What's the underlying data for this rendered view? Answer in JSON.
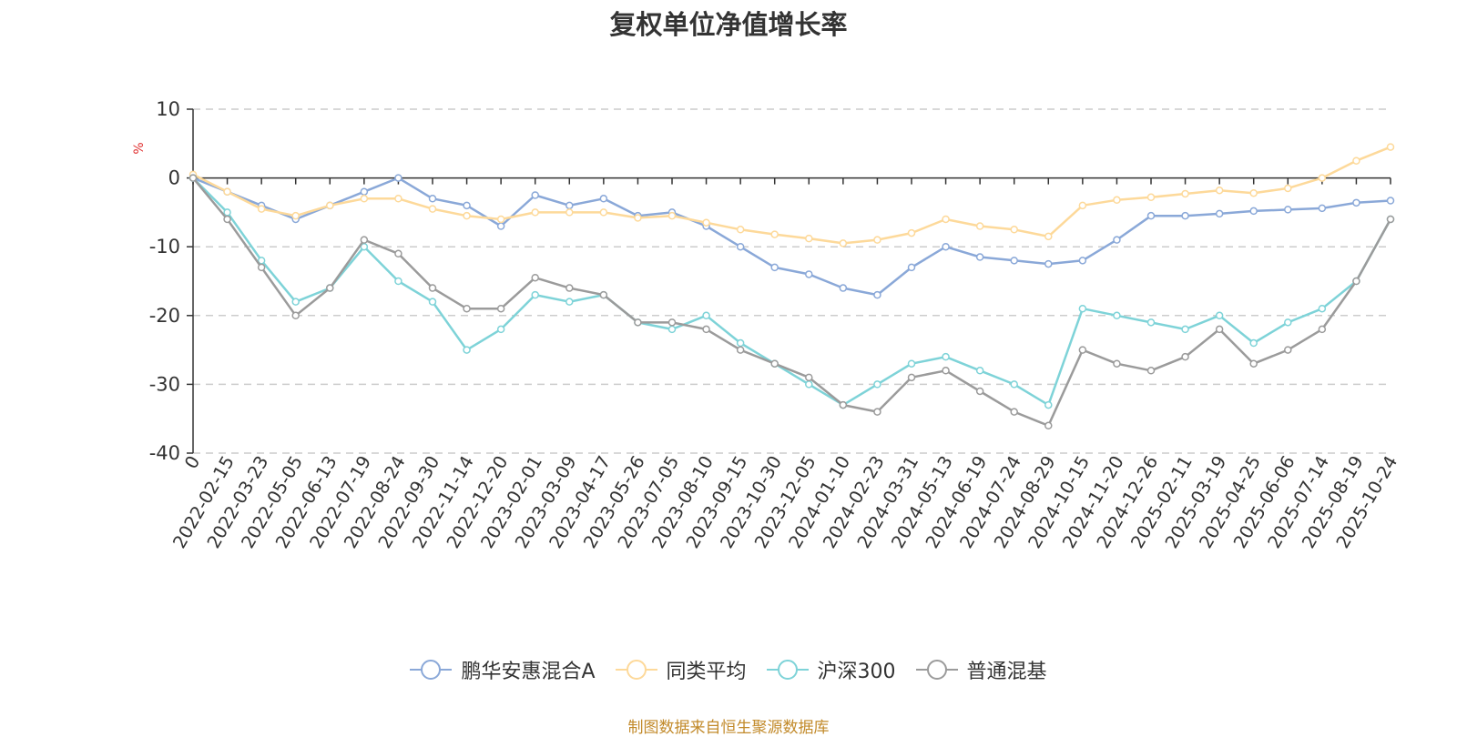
{
  "chart_data": {
    "type": "line",
    "title": "复权单位净值增长率",
    "ylabel": "%",
    "ylim": [
      -40,
      10
    ],
    "yticks": [
      10,
      0,
      -10,
      -20,
      -30,
      -40
    ],
    "grid": true,
    "legend_position": "bottom-center",
    "categories": [
      "0",
      "2022-02-15",
      "2022-03-23",
      "2022-05-05",
      "2022-06-13",
      "2022-07-19",
      "2022-08-24",
      "2022-09-30",
      "2022-11-14",
      "2022-12-20",
      "2023-02-01",
      "2023-03-09",
      "2023-04-17",
      "2023-05-26",
      "2023-07-05",
      "2023-08-10",
      "2023-09-15",
      "2023-10-30",
      "2023-12-05",
      "2024-01-10",
      "2024-02-23",
      "2024-03-31",
      "2024-05-13",
      "2024-06-19",
      "2024-07-24",
      "2024-08-29",
      "2024-10-15",
      "2024-11-20",
      "2024-12-26",
      "2025-02-11",
      "2025-03-19",
      "2025-04-25",
      "2025-06-06",
      "2025-07-14",
      "2025-08-19",
      "2025-10-24"
    ],
    "series": [
      {
        "name": "鹏华安惠混合A",
        "color": "#8aa8d8",
        "values": [
          0,
          -2,
          -4,
          -6,
          -4,
          -2,
          0,
          -3,
          -4,
          -7,
          -2.5,
          -4,
          -3,
          -5.5,
          -5,
          -7,
          -10,
          -13,
          -14,
          -16,
          -17,
          -13,
          -10,
          -11.5,
          -12,
          -12.5,
          -12,
          -9,
          -5.5,
          -5.5,
          -5.2,
          -4.8,
          -4.6,
          -4.4,
          -3.6,
          -3.3
        ]
      },
      {
        "name": "同类平均",
        "color": "#fdd99a",
        "values": [
          0.5,
          -2,
          -4.5,
          -5.5,
          -4,
          -3,
          -3,
          -4.5,
          -5.5,
          -6,
          -5,
          -5,
          -5,
          -5.8,
          -5.5,
          -6.5,
          -7.5,
          -8.2,
          -8.8,
          -9.5,
          -9,
          -8,
          -6,
          -7,
          -7.5,
          -8.5,
          -4,
          -3.2,
          -2.8,
          -2.3,
          -1.8,
          -2.2,
          -1.5,
          0,
          2.5,
          4.5
        ]
      },
      {
        "name": "沪深300",
        "color": "#7ed3d8",
        "values": [
          0,
          -5,
          -12,
          -18,
          -16,
          -10,
          -15,
          -18,
          -25,
          -22,
          -17,
          -18,
          -17,
          -21,
          -22,
          -20,
          -24,
          -27,
          -30,
          -33,
          -30,
          -27,
          -26,
          -28,
          -30,
          -33,
          -19,
          -20,
          -21,
          -22,
          -20,
          -24,
          -21,
          -19,
          -15,
          -6
        ]
      },
      {
        "name": "普通混基",
        "color": "#9b9b9b",
        "values": [
          0,
          -6,
          -13,
          -20,
          -16,
          -9,
          -11,
          -16,
          -19,
          -19,
          -14.5,
          -16,
          -17,
          -21,
          -21,
          -22,
          -25,
          -27,
          -29,
          -33,
          -34,
          -29,
          -28,
          -31,
          -34,
          -36,
          -25,
          -27,
          -28,
          -26,
          -22,
          -27,
          -25,
          -22,
          -15,
          -6
        ]
      }
    ]
  },
  "legend": [
    "鹏华安惠混合A",
    "同类平均",
    "沪深300",
    "普通混基"
  ],
  "source_note": "制图数据来自恒生聚源数据库"
}
